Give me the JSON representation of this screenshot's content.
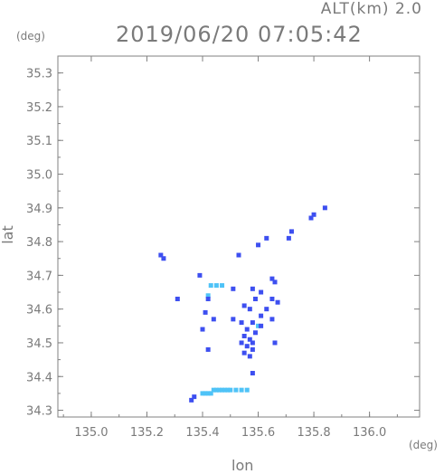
{
  "header": {
    "altitude_label": "ALT(km) 2.0",
    "timestamp": "2019/06/20 07:05:42"
  },
  "chart_data": {
    "type": "scatter",
    "title": "2019/06/20 07:05:42",
    "subtitle": "ALT(km) 2.0",
    "xlabel": "lon",
    "ylabel": "lat",
    "x_unit": "(deg)",
    "y_unit": "(deg)",
    "xlim": [
      134.88,
      136.18
    ],
    "ylim": [
      34.28,
      35.35
    ],
    "x_ticks": [
      135.0,
      135.2,
      135.4,
      135.6,
      135.8,
      136.0
    ],
    "x_tick_labels": [
      "135.0",
      "135.2",
      "135.4",
      "135.6",
      "135.8",
      "136.0"
    ],
    "y_ticks": [
      34.3,
      34.4,
      34.5,
      34.6,
      34.7,
      34.8,
      34.9,
      35.0,
      35.1,
      35.2,
      35.3
    ],
    "y_tick_labels": [
      "34.3",
      "34.4",
      "34.5",
      "34.6",
      "34.7",
      "34.8",
      "34.9",
      "35.0",
      "35.1",
      "35.2",
      "35.3"
    ],
    "grid": false,
    "colors": {
      "frame": "#808080",
      "echo_strong": "#3d4ff0",
      "echo_weak": "#4fc3f7"
    },
    "points": [
      {
        "x": 135.84,
        "y": 34.9,
        "c": "strong"
      },
      {
        "x": 135.8,
        "y": 34.88,
        "c": "strong"
      },
      {
        "x": 135.79,
        "y": 34.87,
        "c": "strong"
      },
      {
        "x": 135.72,
        "y": 34.83,
        "c": "strong"
      },
      {
        "x": 135.71,
        "y": 34.81,
        "c": "strong"
      },
      {
        "x": 135.63,
        "y": 34.81,
        "c": "strong"
      },
      {
        "x": 135.6,
        "y": 34.79,
        "c": "strong"
      },
      {
        "x": 135.25,
        "y": 34.76,
        "c": "strong"
      },
      {
        "x": 135.26,
        "y": 34.75,
        "c": "strong"
      },
      {
        "x": 135.53,
        "y": 34.76,
        "c": "strong"
      },
      {
        "x": 135.39,
        "y": 34.7,
        "c": "strong"
      },
      {
        "x": 135.65,
        "y": 34.69,
        "c": "strong"
      },
      {
        "x": 135.66,
        "y": 34.68,
        "c": "strong"
      },
      {
        "x": 135.43,
        "y": 34.67,
        "c": "weak"
      },
      {
        "x": 135.45,
        "y": 34.67,
        "c": "weak"
      },
      {
        "x": 135.47,
        "y": 34.67,
        "c": "weak"
      },
      {
        "x": 135.51,
        "y": 34.66,
        "c": "strong"
      },
      {
        "x": 135.58,
        "y": 34.66,
        "c": "strong"
      },
      {
        "x": 135.61,
        "y": 34.65,
        "c": "strong"
      },
      {
        "x": 135.42,
        "y": 34.64,
        "c": "weak"
      },
      {
        "x": 135.42,
        "y": 34.63,
        "c": "strong"
      },
      {
        "x": 135.31,
        "y": 34.63,
        "c": "strong"
      },
      {
        "x": 135.59,
        "y": 34.63,
        "c": "strong"
      },
      {
        "x": 135.65,
        "y": 34.63,
        "c": "strong"
      },
      {
        "x": 135.67,
        "y": 34.62,
        "c": "strong"
      },
      {
        "x": 135.55,
        "y": 34.61,
        "c": "strong"
      },
      {
        "x": 135.57,
        "y": 34.6,
        "c": "strong"
      },
      {
        "x": 135.63,
        "y": 34.6,
        "c": "strong"
      },
      {
        "x": 135.41,
        "y": 34.59,
        "c": "strong"
      },
      {
        "x": 135.61,
        "y": 34.58,
        "c": "strong"
      },
      {
        "x": 135.65,
        "y": 34.57,
        "c": "strong"
      },
      {
        "x": 135.44,
        "y": 34.57,
        "c": "strong"
      },
      {
        "x": 135.51,
        "y": 34.57,
        "c": "strong"
      },
      {
        "x": 135.54,
        "y": 34.56,
        "c": "strong"
      },
      {
        "x": 135.58,
        "y": 34.56,
        "c": "strong"
      },
      {
        "x": 135.6,
        "y": 34.55,
        "c": "weak"
      },
      {
        "x": 135.61,
        "y": 34.55,
        "c": "strong"
      },
      {
        "x": 135.56,
        "y": 34.54,
        "c": "strong"
      },
      {
        "x": 135.4,
        "y": 34.54,
        "c": "strong"
      },
      {
        "x": 135.59,
        "y": 34.53,
        "c": "strong"
      },
      {
        "x": 135.55,
        "y": 34.52,
        "c": "strong"
      },
      {
        "x": 135.57,
        "y": 34.51,
        "c": "strong"
      },
      {
        "x": 135.58,
        "y": 34.5,
        "c": "strong"
      },
      {
        "x": 135.54,
        "y": 34.5,
        "c": "strong"
      },
      {
        "x": 135.66,
        "y": 34.5,
        "c": "strong"
      },
      {
        "x": 135.56,
        "y": 34.49,
        "c": "strong"
      },
      {
        "x": 135.58,
        "y": 34.48,
        "c": "strong"
      },
      {
        "x": 135.42,
        "y": 34.48,
        "c": "strong"
      },
      {
        "x": 135.55,
        "y": 34.47,
        "c": "strong"
      },
      {
        "x": 135.57,
        "y": 34.46,
        "c": "strong"
      },
      {
        "x": 135.58,
        "y": 34.41,
        "c": "strong"
      },
      {
        "x": 135.36,
        "y": 34.33,
        "c": "strong"
      },
      {
        "x": 135.37,
        "y": 34.34,
        "c": "strong"
      },
      {
        "x": 135.4,
        "y": 34.35,
        "c": "weak"
      },
      {
        "x": 135.41,
        "y": 34.35,
        "c": "weak"
      },
      {
        "x": 135.42,
        "y": 34.35,
        "c": "weak"
      },
      {
        "x": 135.43,
        "y": 34.35,
        "c": "weak"
      },
      {
        "x": 135.44,
        "y": 34.36,
        "c": "weak"
      },
      {
        "x": 135.45,
        "y": 34.36,
        "c": "weak"
      },
      {
        "x": 135.46,
        "y": 34.36,
        "c": "weak"
      },
      {
        "x": 135.47,
        "y": 34.36,
        "c": "weak"
      },
      {
        "x": 135.48,
        "y": 34.36,
        "c": "weak"
      },
      {
        "x": 135.49,
        "y": 34.36,
        "c": "weak"
      },
      {
        "x": 135.5,
        "y": 34.36,
        "c": "weak"
      },
      {
        "x": 135.52,
        "y": 34.36,
        "c": "weak"
      },
      {
        "x": 135.54,
        "y": 34.36,
        "c": "weak"
      },
      {
        "x": 135.56,
        "y": 34.36,
        "c": "weak"
      }
    ]
  }
}
